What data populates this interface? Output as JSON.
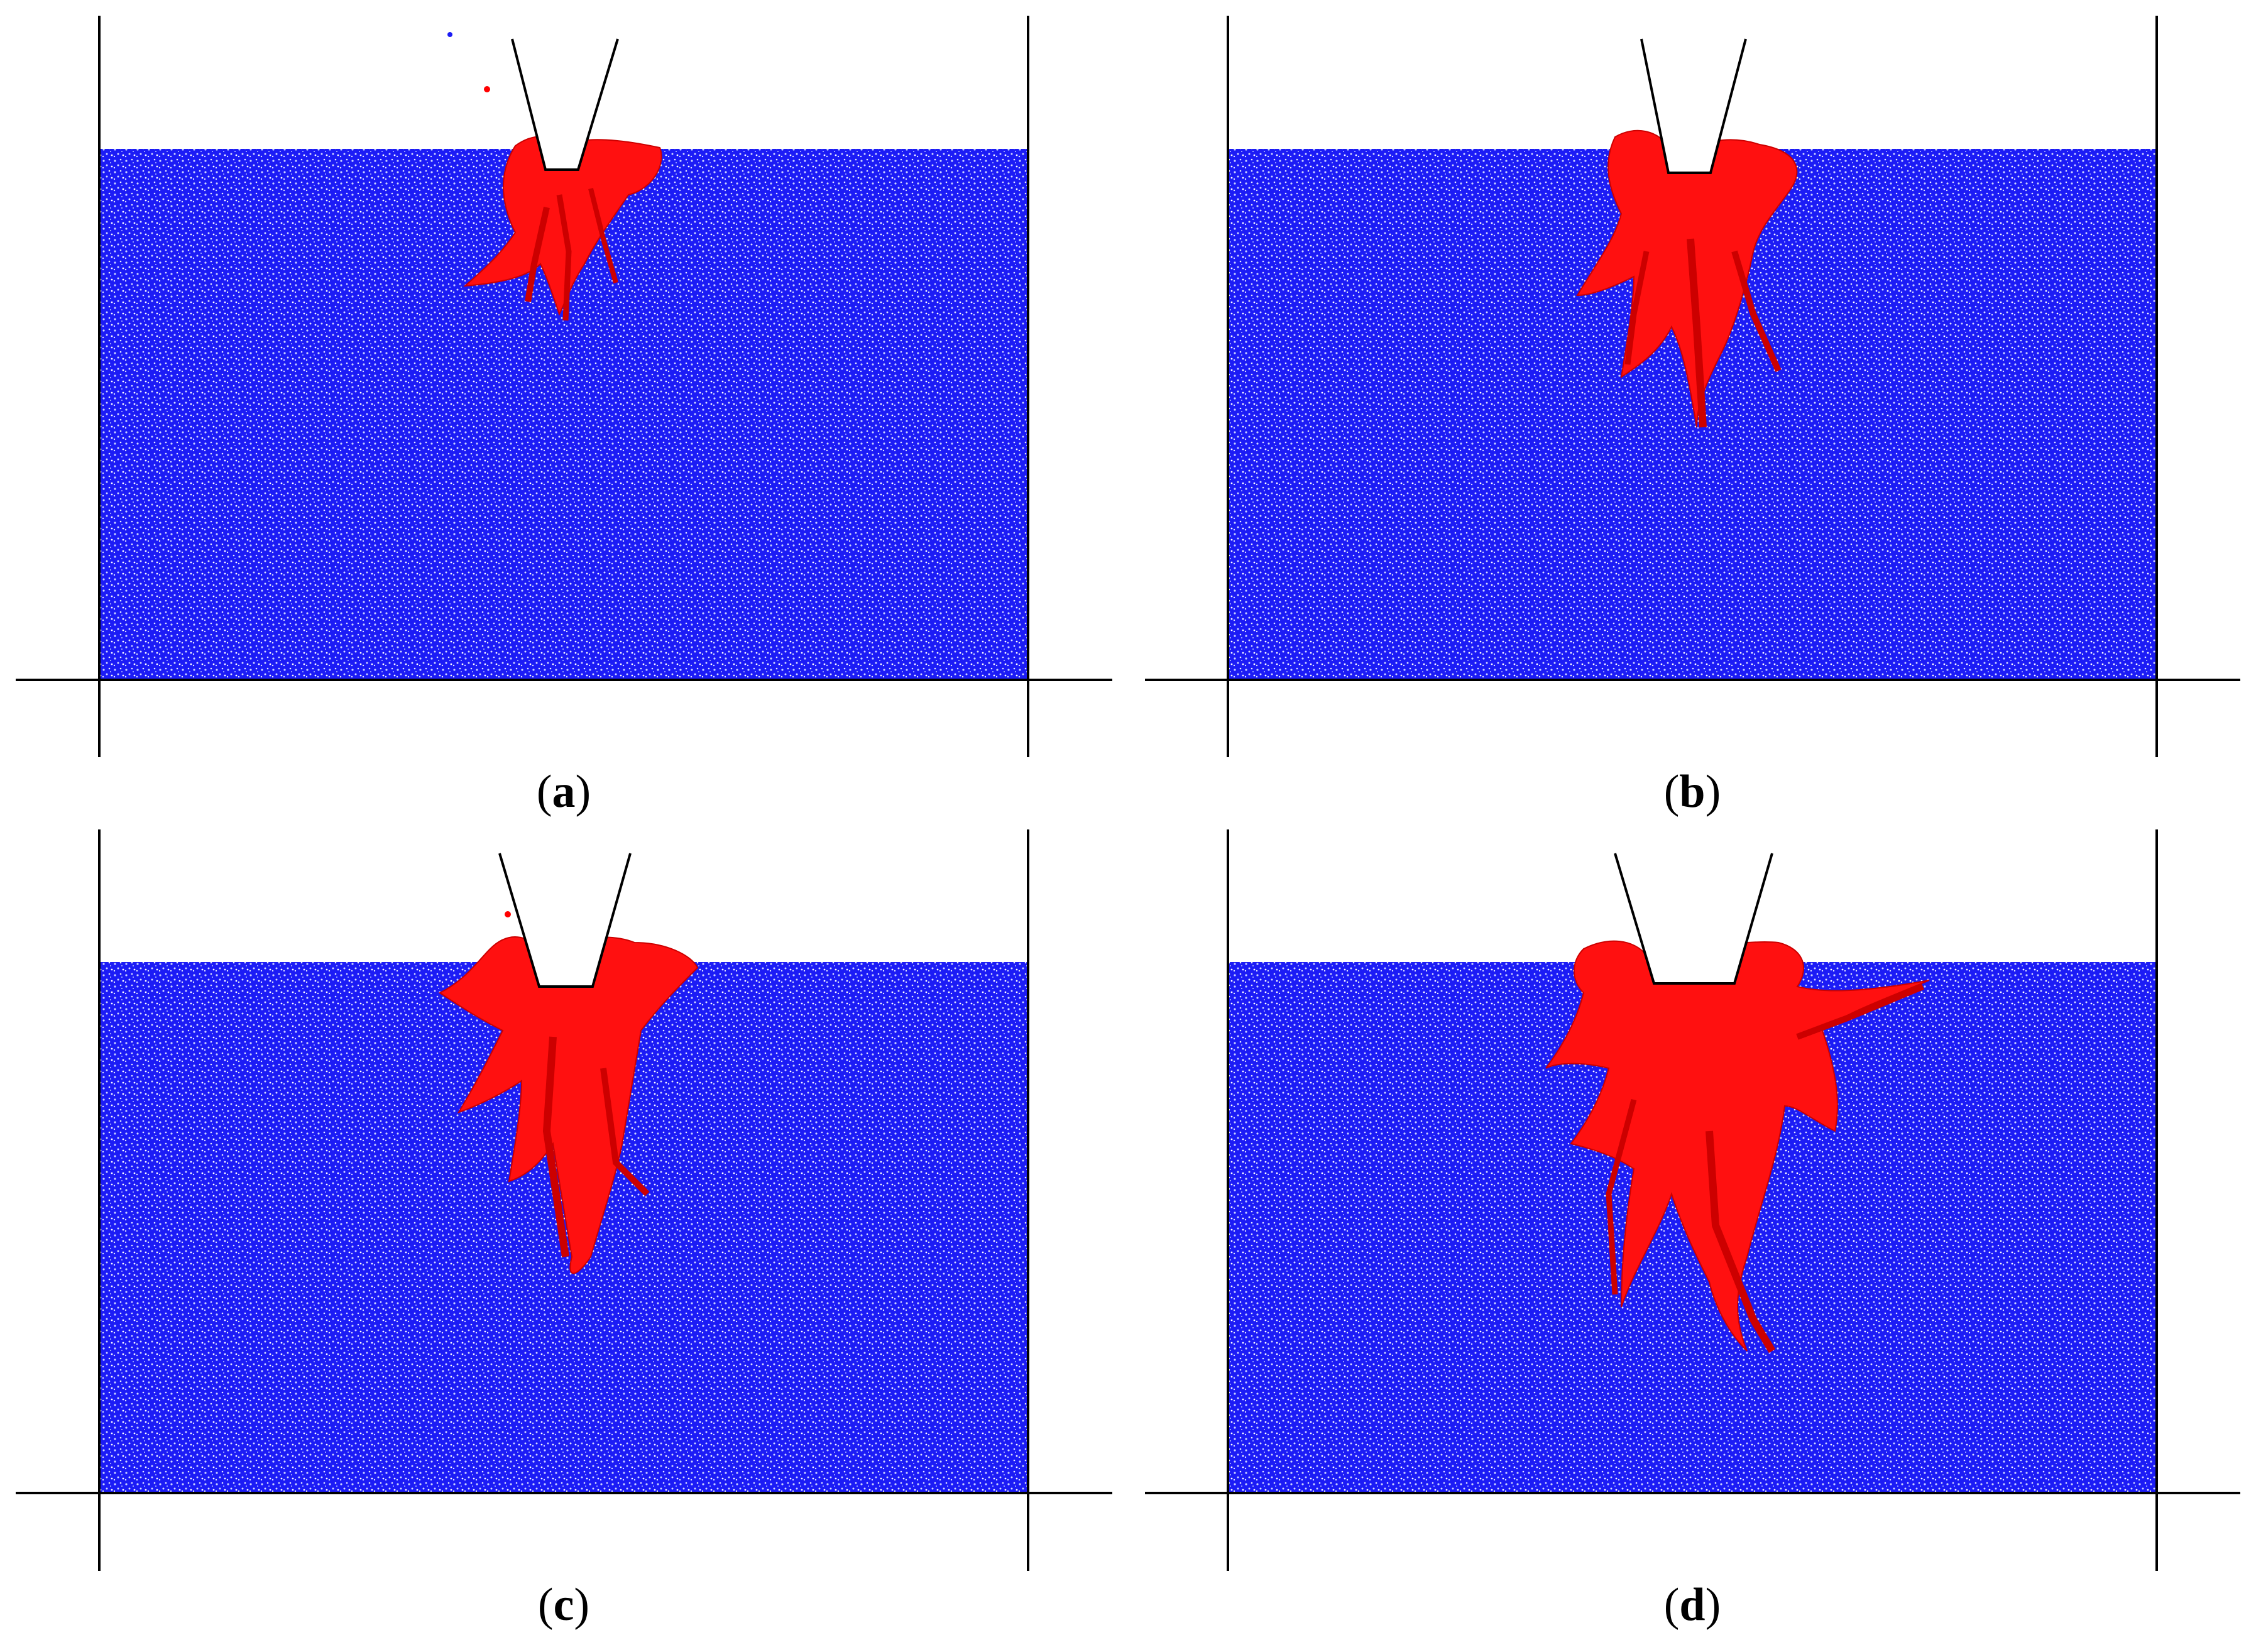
{
  "figure": {
    "panels": [
      {
        "id": "a",
        "label_open": "(",
        "label_letter": "a",
        "label_close": ")"
      },
      {
        "id": "b",
        "label_open": "(",
        "label_letter": "b",
        "label_close": ")"
      },
      {
        "id": "c",
        "label_open": "(",
        "label_letter": "c",
        "label_close": ")"
      },
      {
        "id": "d",
        "label_open": "(",
        "label_letter": "d",
        "label_close": ")"
      }
    ],
    "colors": {
      "particles_intact": "#1a1aff",
      "particles_damaged": "#ff0000",
      "background": "#ffffff",
      "walls": "#000000"
    }
  }
}
